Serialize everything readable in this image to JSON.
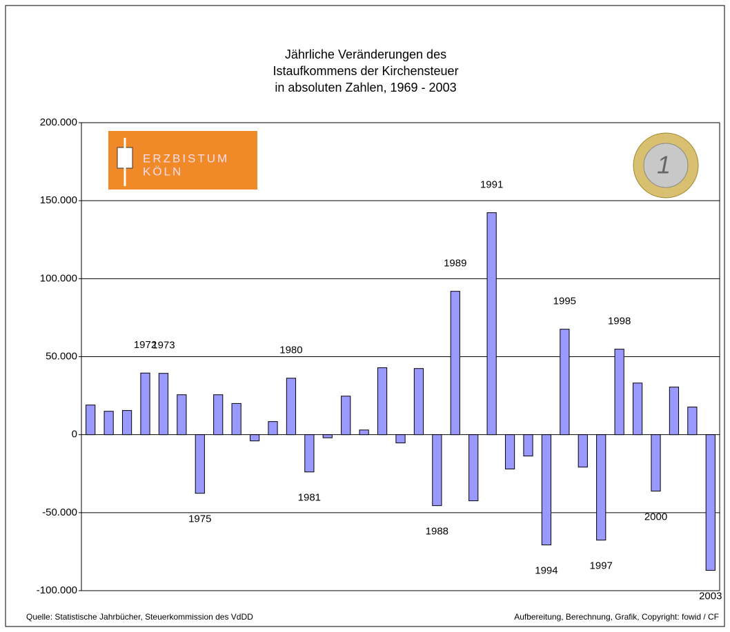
{
  "chart_data": {
    "type": "bar",
    "title_lines": [
      "Jährliche Veränderungen des",
      "Istaufkommens der Kirchensteuer",
      "in absoluten Zahlen, 1969 - 2003"
    ],
    "categories": [
      null,
      null,
      null,
      "1972",
      "1973",
      null,
      "1975",
      null,
      null,
      null,
      null,
      "1980",
      "1981",
      null,
      null,
      null,
      null,
      null,
      null,
      "1988",
      "1989",
      null,
      "1991",
      null,
      null,
      "1994",
      "1995",
      null,
      "1997",
      "1998",
      null,
      "2000",
      null,
      null,
      "2003"
    ],
    "values": [
      19000,
      15000,
      15500,
      39500,
      39300,
      25600,
      -37600,
      25600,
      20000,
      -4000,
      8400,
      36200,
      -23900,
      -2000,
      24700,
      3000,
      42900,
      -5300,
      42400,
      -45500,
      91900,
      -42400,
      142300,
      -22000,
      -13700,
      -70700,
      67600,
      -20800,
      -67600,
      54800,
      33100,
      -36200,
      30500,
      17700,
      -87000
    ],
    "color": "#9999ff",
    "ylim": [
      -100000,
      200000
    ],
    "yticks": [
      {
        "value": -100000,
        "label": "-100.000"
      },
      {
        "value": -50000,
        "label": "-50.000"
      },
      0,
      {
        "value": 50000,
        "label": "50.000"
      },
      {
        "value": 100000,
        "label": "100.000"
      },
      {
        "value": 150000,
        "label": "150.000"
      },
      {
        "value": 200000,
        "label": "200.000"
      }
    ],
    "grid": true,
    "logo_text": [
      "ERZBISTUM",
      "KÖLN"
    ],
    "coin_text": "1",
    "source": "Quelle: Statistische Jahrbücher, Steuerkommission des VdDD",
    "credit": "Aufbereitung, Berechnung, Grafik, Copyright: fowid / CF"
  }
}
